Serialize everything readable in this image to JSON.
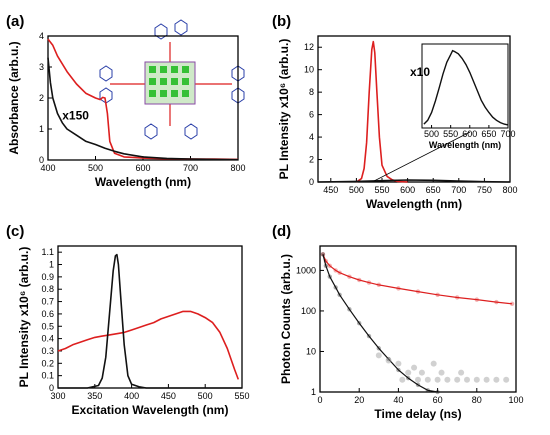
{
  "colors": {
    "red": "#dd1f1f",
    "black": "#111111",
    "gray": "#9a9a9a"
  },
  "chart_data": [
    {
      "panel": "(a)",
      "type": "line",
      "xlabel": "Wavelength (nm)",
      "ylabel": "Absorbance (arb.u.)",
      "xlim": [
        400,
        800
      ],
      "ylim": [
        0,
        4
      ],
      "xticks": [
        400,
        500,
        600,
        700,
        800
      ],
      "yticks": [
        0,
        1,
        2,
        3,
        4
      ],
      "annotation": "x150",
      "series": [
        {
          "color": "red",
          "x": [
            400,
            410,
            420,
            440,
            460,
            480,
            500,
            510,
            515,
            520,
            525,
            530,
            540,
            560,
            600,
            650,
            700,
            750,
            800
          ],
          "y": [
            3.9,
            3.7,
            3.35,
            2.85,
            2.45,
            2.15,
            2.0,
            1.95,
            2.02,
            2.0,
            1.5,
            0.6,
            0.22,
            0.1,
            0.06,
            0.04,
            0.03,
            0.03,
            0.02
          ]
        },
        {
          "color": "black",
          "x": [
            400,
            405,
            410,
            420,
            430,
            440,
            460,
            480,
            500,
            520,
            540,
            560,
            600,
            650,
            700,
            750,
            800
          ],
          "y": [
            3.3,
            2.5,
            2.0,
            1.5,
            1.2,
            1.0,
            0.8,
            0.6,
            0.5,
            0.38,
            0.28,
            0.2,
            0.1,
            0.05,
            0.03,
            0.02,
            0.01
          ]
        }
      ]
    },
    {
      "panel": "(b)",
      "type": "line",
      "xlabel": "Wavelength (nm)",
      "ylabel": "PL Intensity x10⁶ (arb.u.)",
      "xlim": [
        425,
        800
      ],
      "ylim": [
        0,
        13
      ],
      "xticks": [
        450,
        500,
        550,
        600,
        650,
        700,
        750,
        800
      ],
      "yticks": [
        0,
        2,
        4,
        6,
        8,
        10,
        12
      ],
      "series": [
        {
          "color": "red",
          "x": [
            500,
            510,
            515,
            520,
            525,
            530,
            533,
            536,
            540,
            545,
            550,
            560,
            570,
            580,
            600
          ],
          "y": [
            0,
            0.3,
            1.2,
            3.5,
            8.0,
            11.8,
            12.5,
            11.5,
            8.0,
            4.0,
            1.5,
            0.5,
            0.2,
            0.05,
            0
          ]
        },
        {
          "color": "black",
          "x": [
            425,
            500,
            550,
            600,
            650,
            700,
            750,
            800
          ],
          "y": [
            0,
            0.05,
            0.12,
            0.18,
            0.15,
            0.08,
            0.03,
            0
          ]
        }
      ],
      "inset": {
        "annotation": "x10",
        "xlabel": "Wavelength (nm)",
        "xlim": [
          475,
          700
        ],
        "xticks": [
          500,
          550,
          600,
          650,
          700
        ],
        "x": [
          480,
          490,
          500,
          510,
          520,
          530,
          540,
          550,
          555,
          560,
          570,
          580,
          590,
          600,
          610,
          620,
          630,
          640,
          650,
          660,
          670,
          680,
          690,
          700
        ],
        "y": [
          0.05,
          0.1,
          0.2,
          0.35,
          0.52,
          0.7,
          0.85,
          0.95,
          1.0,
          0.99,
          0.96,
          0.9,
          0.82,
          0.72,
          0.6,
          0.48,
          0.36,
          0.27,
          0.2,
          0.14,
          0.1,
          0.07,
          0.05,
          0.04
        ]
      }
    },
    {
      "panel": "(c)",
      "type": "line",
      "xlabel": "Excitation Wavelength (nm)",
      "ylabel": "PL Intensity x10⁶ (arb.u.)",
      "xlim": [
        300,
        550
      ],
      "ylim": [
        0,
        1.15
      ],
      "xticks": [
        300,
        350,
        400,
        450,
        500,
        550
      ],
      "yticks": [
        0.0,
        0.1,
        0.2,
        0.3,
        0.4,
        0.5,
        0.6,
        0.7,
        0.8,
        0.9,
        1.0,
        1.1
      ],
      "series": [
        {
          "color": "red",
          "x": [
            300,
            310,
            320,
            330,
            340,
            350,
            360,
            370,
            380,
            390,
            400,
            410,
            420,
            430,
            440,
            450,
            460,
            470,
            480,
            490,
            500,
            510,
            520,
            530,
            540,
            545
          ],
          "y": [
            0.3,
            0.32,
            0.35,
            0.37,
            0.39,
            0.41,
            0.42,
            0.43,
            0.44,
            0.45,
            0.47,
            0.49,
            0.51,
            0.53,
            0.56,
            0.58,
            0.6,
            0.62,
            0.62,
            0.6,
            0.57,
            0.53,
            0.45,
            0.32,
            0.15,
            0.07
          ]
        },
        {
          "color": "black",
          "x": [
            300,
            340,
            355,
            360,
            365,
            370,
            375,
            378,
            380,
            382,
            385,
            390,
            395,
            400,
            410,
            420,
            450,
            500,
            550
          ],
          "y": [
            0,
            0.0,
            0.02,
            0.08,
            0.25,
            0.6,
            0.95,
            1.07,
            1.08,
            1.0,
            0.75,
            0.35,
            0.1,
            0.03,
            0.01,
            0,
            0,
            0,
            0
          ]
        }
      ]
    },
    {
      "panel": "(d)",
      "type": "scatter",
      "xlabel": "Time delay (ns)",
      "ylabel": "Photon Counts (arb.u.)",
      "xlim": [
        0,
        100
      ],
      "ylim": [
        1,
        4000
      ],
      "yscale": "log",
      "xticks": [
        0,
        20,
        40,
        60,
        80,
        100
      ],
      "yticks": [
        1,
        10,
        100,
        1000
      ],
      "series": [
        {
          "color": "red",
          "fit": true,
          "x": [
            1.5,
            3,
            5,
            8,
            10,
            15,
            20,
            25,
            30,
            40,
            50,
            60,
            70,
            80,
            90,
            98
          ],
          "y": [
            2500,
            1700,
            1300,
            1000,
            880,
            700,
            580,
            500,
            440,
            360,
            300,
            250,
            215,
            190,
            165,
            150
          ]
        },
        {
          "color": "black",
          "fit": true,
          "x": [
            1.5,
            3,
            5,
            8,
            10,
            15,
            20,
            25,
            30,
            35,
            40,
            45,
            50,
            55,
            60
          ],
          "y": [
            2500,
            1300,
            700,
            380,
            250,
            110,
            50,
            24,
            12,
            6.5,
            3.5,
            2.2,
            1.5,
            1.1,
            1.0
          ]
        },
        {
          "color": "gray",
          "fit": false,
          "x": [
            30,
            35,
            40,
            42,
            45,
            48,
            50,
            52,
            55,
            58,
            60,
            62,
            65,
            70,
            72,
            75,
            80,
            85,
            90,
            95
          ],
          "y": [
            8,
            6,
            5,
            2,
            3,
            4,
            2,
            3,
            2,
            5,
            2,
            3,
            2,
            2,
            3,
            2,
            2,
            2,
            2,
            2
          ]
        }
      ]
    }
  ]
}
